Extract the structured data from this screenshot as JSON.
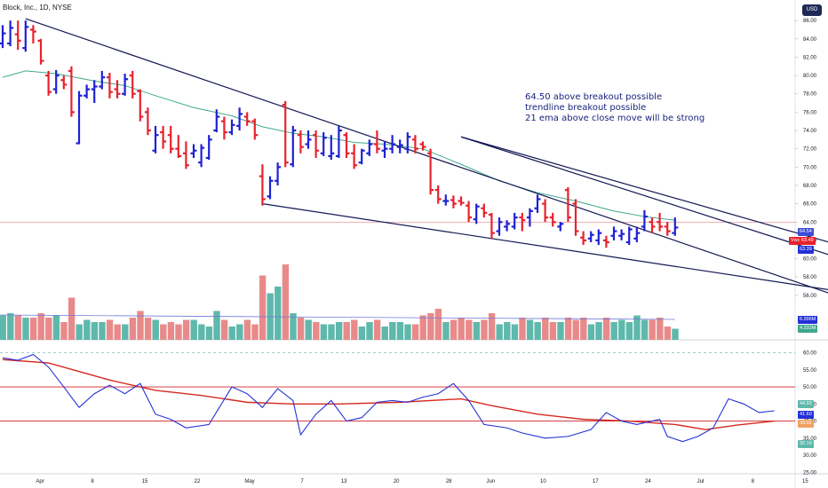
{
  "header": {
    "title": "Block, Inc., 1D, NYSE",
    "currency": "USD"
  },
  "annotation": {
    "lines": [
      "64.50 above breakout possible",
      "trendline breakout possible",
      "21 ema above close move will be strong"
    ]
  },
  "price_tags": {
    "t1": "64.54",
    "t2": "63.49",
    "t2_prefix": "Vwc",
    "t3": "63.39",
    "vol1": "6.996M",
    "vol2": "4.332M"
  },
  "rsi_tags": {
    "r1": "44.92",
    "r2": "41.60",
    "r3": "39.02",
    "r4": "32.10"
  },
  "colors": {
    "bar_up": "#1e22d4",
    "bar_down": "#e8222d",
    "ema": "#3fa88f",
    "trendline": "#141852",
    "vol_up": "#5fb8ac",
    "vol_down": "#e88a8a",
    "rsi": "#2431d6",
    "rsi_ma": "#d42a20",
    "hline_red": "#d2222d"
  },
  "chart_data": [
    {
      "type": "ohlc",
      "name": "price",
      "x_labels": [
        "Apr",
        "8",
        "15",
        "22",
        "May",
        "7",
        "13",
        "20",
        "28",
        "Jun",
        "10",
        "17",
        "24",
        "Jul",
        "8",
        "15"
      ],
      "x_label_days": [
        0,
        5,
        10,
        15,
        20,
        25,
        29,
        34,
        39,
        43,
        48,
        53,
        58,
        63,
        68,
        73
      ],
      "y_ticks": [
        56,
        58,
        60,
        62,
        64,
        66,
        68,
        70,
        72,
        74,
        76,
        78,
        80,
        82,
        84,
        86
      ],
      "ylim": [
        55.5,
        86.5
      ],
      "bars": [
        {
          "o": 83.5,
          "h": 85.5,
          "l": 83.0,
          "c": 84.6
        },
        {
          "o": 83.5,
          "h": 86.0,
          "l": 83.2,
          "c": 85.2
        },
        {
          "o": 84.5,
          "h": 86.0,
          "l": 82.8,
          "c": 83.8
        },
        {
          "o": 83.0,
          "h": 86.0,
          "l": 82.6,
          "c": 85.3
        },
        {
          "o": 85.0,
          "h": 85.5,
          "l": 83.5,
          "c": 84.8
        },
        {
          "o": 83.8,
          "h": 84.0,
          "l": 81.2,
          "c": 81.6
        },
        {
          "o": 80.0,
          "h": 80.5,
          "l": 77.8,
          "c": 78.2
        },
        {
          "o": 78.5,
          "h": 80.6,
          "l": 78.0,
          "c": 80.0
        },
        {
          "o": 79.5,
          "h": 80.0,
          "l": 78.5,
          "c": 79.0
        },
        {
          "o": 80.5,
          "h": 81.0,
          "l": 75.5,
          "c": 76.0
        },
        {
          "o": 72.6,
          "h": 78.3,
          "l": 72.5,
          "c": 77.8
        },
        {
          "o": 77.8,
          "h": 79.0,
          "l": 77.5,
          "c": 78.5
        },
        {
          "o": 78.5,
          "h": 79.5,
          "l": 77.0,
          "c": 78.8
        },
        {
          "o": 78.8,
          "h": 80.5,
          "l": 78.5,
          "c": 79.8
        },
        {
          "o": 79.8,
          "h": 80.3,
          "l": 77.5,
          "c": 78.2
        },
        {
          "o": 78.5,
          "h": 79.5,
          "l": 77.5,
          "c": 78.0
        },
        {
          "o": 78.0,
          "h": 80.2,
          "l": 77.8,
          "c": 79.6
        },
        {
          "o": 80.0,
          "h": 80.5,
          "l": 77.5,
          "c": 78.0
        },
        {
          "o": 78.3,
          "h": 78.5,
          "l": 75.0,
          "c": 75.5
        },
        {
          "o": 76.0,
          "h": 76.5,
          "l": 73.5,
          "c": 74.0
        },
        {
          "o": 71.8,
          "h": 74.5,
          "l": 71.5,
          "c": 73.5
        },
        {
          "o": 73.8,
          "h": 74.5,
          "l": 72.0,
          "c": 72.8
        },
        {
          "o": 73.5,
          "h": 74.5,
          "l": 71.5,
          "c": 72.0
        },
        {
          "o": 72.0,
          "h": 73.5,
          "l": 71.0,
          "c": 71.2
        },
        {
          "o": 71.5,
          "h": 72.8,
          "l": 69.8,
          "c": 70.2
        },
        {
          "o": 71.5,
          "h": 72.5,
          "l": 71.0,
          "c": 71.8
        },
        {
          "o": 70.5,
          "h": 72.5,
          "l": 70.0,
          "c": 72.1
        },
        {
          "o": 71.0,
          "h": 73.5,
          "l": 70.8,
          "c": 73.0
        },
        {
          "o": 74.0,
          "h": 76.3,
          "l": 73.8,
          "c": 75.5
        },
        {
          "o": 75.0,
          "h": 75.5,
          "l": 73.0,
          "c": 73.8
        },
        {
          "o": 73.8,
          "h": 75.2,
          "l": 73.5,
          "c": 74.6
        },
        {
          "o": 74.5,
          "h": 76.5,
          "l": 74.0,
          "c": 75.8
        },
        {
          "o": 75.5,
          "h": 76.0,
          "l": 74.5,
          "c": 75.0
        },
        {
          "o": 75.0,
          "h": 75.3,
          "l": 73.0,
          "c": 73.5
        },
        {
          "o": 69.0,
          "h": 70.3,
          "l": 65.8,
          "c": 66.5
        },
        {
          "o": 66.8,
          "h": 69.0,
          "l": 66.5,
          "c": 68.5
        },
        {
          "o": 68.5,
          "h": 70.5,
          "l": 68.0,
          "c": 70.0
        },
        {
          "o": 76.8,
          "h": 77.2,
          "l": 70.0,
          "c": 70.5
        },
        {
          "o": 70.3,
          "h": 74.5,
          "l": 70.0,
          "c": 74.0
        },
        {
          "o": 73.5,
          "h": 74.0,
          "l": 71.5,
          "c": 72.2
        },
        {
          "o": 72.5,
          "h": 74.0,
          "l": 72.0,
          "c": 73.0
        },
        {
          "o": 73.5,
          "h": 74.0,
          "l": 71.0,
          "c": 71.8
        },
        {
          "o": 71.5,
          "h": 73.8,
          "l": 71.2,
          "c": 73.2
        },
        {
          "o": 71.2,
          "h": 73.5,
          "l": 70.8,
          "c": 71.5
        },
        {
          "o": 71.2,
          "h": 74.5,
          "l": 71.0,
          "c": 74.0
        },
        {
          "o": 73.5,
          "h": 73.8,
          "l": 71.0,
          "c": 71.5
        },
        {
          "o": 71.5,
          "h": 72.5,
          "l": 69.8,
          "c": 70.2
        },
        {
          "o": 70.5,
          "h": 72.0,
          "l": 70.3,
          "c": 71.8
        },
        {
          "o": 71.5,
          "h": 73.0,
          "l": 71.2,
          "c": 72.5
        },
        {
          "o": 72.5,
          "h": 74.0,
          "l": 71.5,
          "c": 72.0
        },
        {
          "o": 71.8,
          "h": 72.8,
          "l": 71.0,
          "c": 72.0
        },
        {
          "o": 72.0,
          "h": 73.5,
          "l": 71.5,
          "c": 72.5
        },
        {
          "o": 72.2,
          "h": 73.0,
          "l": 71.5,
          "c": 72.4
        },
        {
          "o": 72.0,
          "h": 73.8,
          "l": 71.5,
          "c": 73.3
        },
        {
          "o": 73.0,
          "h": 73.5,
          "l": 71.5,
          "c": 72.0
        },
        {
          "o": 72.5,
          "h": 72.8,
          "l": 71.8,
          "c": 72.2
        },
        {
          "o": 71.5,
          "h": 72.0,
          "l": 67.0,
          "c": 67.5
        },
        {
          "o": 67.5,
          "h": 68.0,
          "l": 66.0,
          "c": 66.5
        },
        {
          "o": 66.3,
          "h": 67.0,
          "l": 65.8,
          "c": 66.3
        },
        {
          "o": 66.4,
          "h": 66.9,
          "l": 65.5,
          "c": 66.0
        },
        {
          "o": 66.3,
          "h": 66.8,
          "l": 65.8,
          "c": 66.1
        },
        {
          "o": 65.8,
          "h": 66.3,
          "l": 64.0,
          "c": 64.5
        },
        {
          "o": 64.3,
          "h": 66.0,
          "l": 63.8,
          "c": 65.7
        },
        {
          "o": 65.5,
          "h": 66.0,
          "l": 64.5,
          "c": 65.0
        },
        {
          "o": 64.8,
          "h": 65.0,
          "l": 62.2,
          "c": 62.8
        },
        {
          "o": 63.0,
          "h": 64.5,
          "l": 62.5,
          "c": 64.0
        },
        {
          "o": 63.5,
          "h": 64.2,
          "l": 63.0,
          "c": 63.8
        },
        {
          "o": 63.5,
          "h": 65.0,
          "l": 63.2,
          "c": 64.5
        },
        {
          "o": 64.5,
          "h": 65.0,
          "l": 63.0,
          "c": 64.2
        },
        {
          "o": 64.5,
          "h": 65.5,
          "l": 63.5,
          "c": 65.2
        },
        {
          "o": 65.5,
          "h": 67.0,
          "l": 65.0,
          "c": 66.5
        },
        {
          "o": 66.0,
          "h": 66.5,
          "l": 64.0,
          "c": 64.5
        },
        {
          "o": 64.5,
          "h": 65.0,
          "l": 63.5,
          "c": 64.0
        },
        {
          "o": 63.5,
          "h": 64.0,
          "l": 63.0,
          "c": 63.8
        },
        {
          "o": 67.5,
          "h": 67.8,
          "l": 64.0,
          "c": 64.5
        },
        {
          "o": 66.0,
          "h": 66.5,
          "l": 62.5,
          "c": 63.0
        },
        {
          "o": 62.3,
          "h": 63.0,
          "l": 61.5,
          "c": 62.0
        },
        {
          "o": 62.2,
          "h": 63.0,
          "l": 61.8,
          "c": 62.6
        },
        {
          "o": 62.0,
          "h": 63.2,
          "l": 61.5,
          "c": 62.8
        },
        {
          "o": 62.0,
          "h": 62.5,
          "l": 61.2,
          "c": 61.8
        },
        {
          "o": 62.5,
          "h": 63.5,
          "l": 62.0,
          "c": 63.0
        },
        {
          "o": 62.5,
          "h": 63.2,
          "l": 62.0,
          "c": 62.7
        },
        {
          "o": 61.8,
          "h": 63.5,
          "l": 61.5,
          "c": 63.2
        },
        {
          "o": 62.2,
          "h": 63.5,
          "l": 61.8,
          "c": 62.8
        },
        {
          "o": 63.5,
          "h": 65.3,
          "l": 63.0,
          "c": 64.6
        },
        {
          "o": 64.0,
          "h": 64.5,
          "l": 62.8,
          "c": 63.5
        },
        {
          "o": 64.0,
          "h": 65.0,
          "l": 63.0,
          "c": 63.5
        },
        {
          "o": 63.5,
          "h": 64.0,
          "l": 62.5,
          "c": 63.0
        },
        {
          "o": 62.8,
          "h": 64.5,
          "l": 62.5,
          "c": 63.4
        }
      ],
      "ema_21": [
        {
          "i": 0,
          "v": 79.8
        },
        {
          "i": 3,
          "v": 80.5
        },
        {
          "i": 7,
          "v": 80.2
        },
        {
          "i": 12,
          "v": 79.4
        },
        {
          "i": 16,
          "v": 78.9
        },
        {
          "i": 20,
          "v": 77.8
        },
        {
          "i": 25,
          "v": 76.5
        },
        {
          "i": 30,
          "v": 75.6
        },
        {
          "i": 34,
          "v": 74.4
        },
        {
          "i": 38,
          "v": 73.7
        },
        {
          "i": 42,
          "v": 73.3
        },
        {
          "i": 46,
          "v": 72.7
        },
        {
          "i": 50,
          "v": 72.5
        },
        {
          "i": 55,
          "v": 72.0
        },
        {
          "i": 60,
          "v": 70.3
        },
        {
          "i": 65,
          "v": 68.5
        },
        {
          "i": 70,
          "v": 67.2
        },
        {
          "i": 75,
          "v": 66.3
        },
        {
          "i": 80,
          "v": 65.2
        },
        {
          "i": 84,
          "v": 64.6
        },
        {
          "i": 88,
          "v": 64.2
        }
      ],
      "trendlines": [
        {
          "from": {
            "i": 3,
            "v": 86.2
          },
          "to": {
            "i": 109,
            "v": 56.0
          }
        },
        {
          "from": {
            "i": 60,
            "v": 73.3
          },
          "to": {
            "i": 109,
            "v": 61.6
          }
        },
        {
          "from": {
            "i": 60,
            "v": 73.3
          },
          "to": {
            "i": 109,
            "v": 60.2
          }
        },
        {
          "from": {
            "i": 34,
            "v": 66.0
          },
          "to": {
            "i": 109,
            "v": 56.5
          }
        }
      ],
      "horizontal_line": 64.0,
      "volume": [
        0.55,
        0.6,
        0.55,
        0.5,
        0.5,
        0.6,
        0.5,
        0.55,
        0.4,
        0.95,
        0.35,
        0.45,
        0.4,
        0.4,
        0.45,
        0.35,
        0.35,
        0.5,
        0.65,
        0.5,
        0.45,
        0.35,
        0.4,
        0.35,
        0.45,
        0.45,
        0.35,
        0.3,
        0.65,
        0.45,
        0.3,
        0.35,
        0.45,
        0.35,
        1.45,
        1.05,
        1.2,
        1.7,
        0.6,
        0.5,
        0.45,
        0.4,
        0.35,
        0.35,
        0.4,
        0.4,
        0.45,
        0.3,
        0.4,
        0.45,
        0.3,
        0.4,
        0.4,
        0.35,
        0.35,
        0.55,
        0.6,
        0.7,
        0.4,
        0.45,
        0.5,
        0.45,
        0.4,
        0.45,
        0.6,
        0.35,
        0.4,
        0.35,
        0.5,
        0.45,
        0.4,
        0.5,
        0.4,
        0.4,
        0.5,
        0.45,
        0.5,
        0.35,
        0.4,
        0.5,
        0.4,
        0.45,
        0.4,
        0.55,
        0.45,
        0.45,
        0.5,
        0.3,
        0.25
      ]
    },
    {
      "type": "line",
      "name": "rsi",
      "y_ticks": [
        25,
        30,
        35,
        40,
        45,
        50,
        55,
        60
      ],
      "ylim": [
        23,
        63
      ],
      "hlines": [
        40,
        50
      ],
      "dashed_hline": 60,
      "rsi": [
        {
          "i": 0,
          "v": 58.5
        },
        {
          "i": 2,
          "v": 57.8
        },
        {
          "i": 4,
          "v": 59.5
        },
        {
          "i": 6,
          "v": 55.8
        },
        {
          "i": 8,
          "v": 50.0
        },
        {
          "i": 10,
          "v": 44.0
        },
        {
          "i": 12,
          "v": 48.0
        },
        {
          "i": 14,
          "v": 50.5
        },
        {
          "i": 16,
          "v": 48.0
        },
        {
          "i": 18,
          "v": 51.0
        },
        {
          "i": 20,
          "v": 42.0
        },
        {
          "i": 22,
          "v": 40.5
        },
        {
          "i": 24,
          "v": 38.0
        },
        {
          "i": 27,
          "v": 39.0
        },
        {
          "i": 30,
          "v": 50.0
        },
        {
          "i": 32,
          "v": 48.0
        },
        {
          "i": 34,
          "v": 44.0
        },
        {
          "i": 36,
          "v": 49.5
        },
        {
          "i": 38,
          "v": 46.0
        },
        {
          "i": 39,
          "v": 36.0
        },
        {
          "i": 41,
          "v": 42.0
        },
        {
          "i": 43,
          "v": 46.0
        },
        {
          "i": 45,
          "v": 40.0
        },
        {
          "i": 47,
          "v": 41.0
        },
        {
          "i": 49,
          "v": 45.5
        },
        {
          "i": 51,
          "v": 46.0
        },
        {
          "i": 53,
          "v": 45.5
        },
        {
          "i": 55,
          "v": 47.0
        },
        {
          "i": 57,
          "v": 48.0
        },
        {
          "i": 59,
          "v": 51.0
        },
        {
          "i": 61,
          "v": 46.0
        },
        {
          "i": 63,
          "v": 39.0
        },
        {
          "i": 66,
          "v": 38.0
        },
        {
          "i": 68,
          "v": 36.5
        },
        {
          "i": 71,
          "v": 35.0
        },
        {
          "i": 74,
          "v": 35.5
        },
        {
          "i": 77,
          "v": 37.5
        },
        {
          "i": 79,
          "v": 42.5
        },
        {
          "i": 81,
          "v": 40.0
        },
        {
          "i": 83,
          "v": 39.0
        },
        {
          "i": 85,
          "v": 40.0
        },
        {
          "i": 86,
          "v": 40.5
        },
        {
          "i": 87,
          "v": 35.5
        },
        {
          "i": 89,
          "v": 34.0
        },
        {
          "i": 91,
          "v": 35.5
        },
        {
          "i": 93,
          "v": 38.0
        },
        {
          "i": 95,
          "v": 46.5
        },
        {
          "i": 97,
          "v": 45.0
        },
        {
          "i": 99,
          "v": 42.5
        },
        {
          "i": 101,
          "v": 43.0
        }
      ],
      "rsi_ma": [
        {
          "i": 0,
          "v": 58.0
        },
        {
          "i": 6,
          "v": 57.0
        },
        {
          "i": 10,
          "v": 54.5
        },
        {
          "i": 14,
          "v": 52.0
        },
        {
          "i": 20,
          "v": 49.0
        },
        {
          "i": 26,
          "v": 47.5
        },
        {
          "i": 32,
          "v": 45.5
        },
        {
          "i": 38,
          "v": 45.0
        },
        {
          "i": 44,
          "v": 45.0
        },
        {
          "i": 52,
          "v": 45.5
        },
        {
          "i": 60,
          "v": 46.5
        },
        {
          "i": 64,
          "v": 44.5
        },
        {
          "i": 70,
          "v": 42.0
        },
        {
          "i": 76,
          "v": 40.5
        },
        {
          "i": 82,
          "v": 40.0
        },
        {
          "i": 88,
          "v": 39.0
        },
        {
          "i": 92,
          "v": 37.5
        },
        {
          "i": 96,
          "v": 38.8
        },
        {
          "i": 101,
          "v": 40.0
        }
      ]
    }
  ]
}
